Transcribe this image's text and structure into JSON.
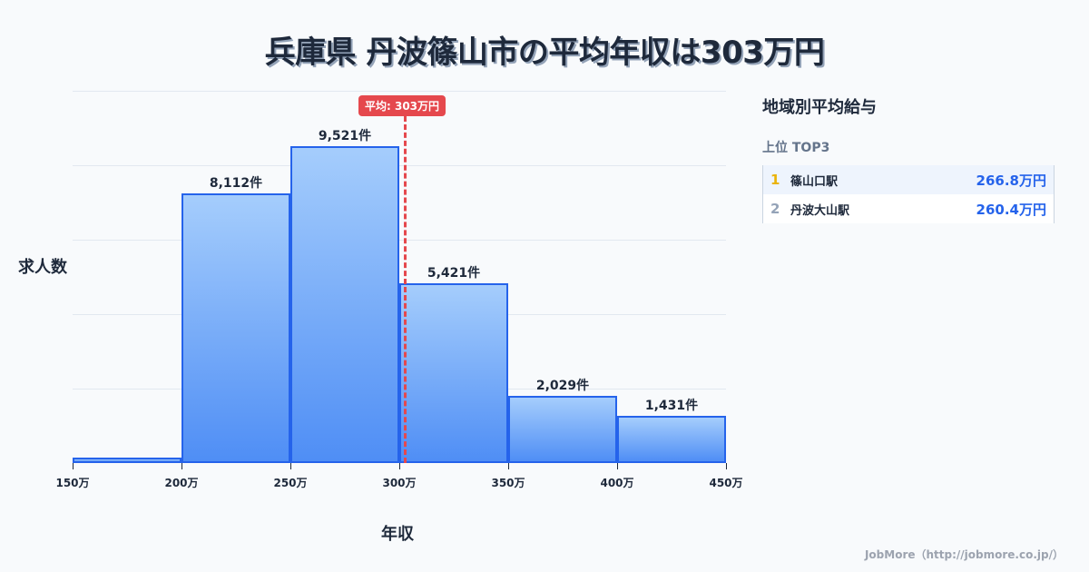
{
  "title": "兵庫県 丹波篠山市の平均年収は303万円",
  "chart_data": {
    "type": "bar",
    "title": "兵庫県 丹波篠山市の平均年収は303万円",
    "xlabel": "年収",
    "ylabel": "求人数",
    "x_ticks": [
      "150万",
      "200万",
      "250万",
      "300万",
      "350万",
      "400万",
      "450万"
    ],
    "categories": [
      "150万-200万",
      "200万-250万",
      "250万-300万",
      "300万-350万",
      "350万-400万",
      "400万-450万"
    ],
    "values": [
      160,
      8112,
      9521,
      5421,
      2029,
      1431
    ],
    "labels": [
      "",
      "8,112件",
      "9,521件",
      "5,421件",
      "2,029件",
      "1,431件"
    ],
    "ylim": [
      0,
      11200
    ],
    "grid": true,
    "average": {
      "value": 303,
      "label": "平均: 303万円"
    }
  },
  "sidebar": {
    "title": "地域別平均給与",
    "subtitle": "上位 TOP3",
    "items": [
      {
        "rank": "1",
        "name": "篠山口駅",
        "value": "266.8万円"
      },
      {
        "rank": "2",
        "name": "丹波大山駅",
        "value": "260.4万円"
      }
    ]
  },
  "footer": "JobMore（http://jobmore.co.jp/）"
}
